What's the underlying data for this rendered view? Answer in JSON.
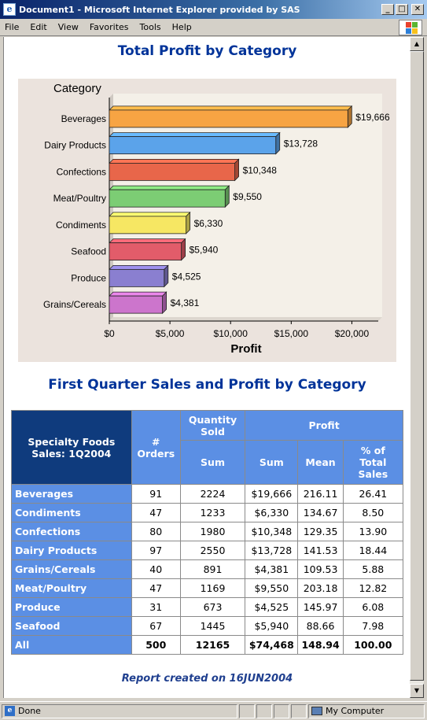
{
  "window": {
    "title": "Document1 - Microsoft Internet Explorer provided by SAS",
    "app_icon": "ie-icon",
    "controls": [
      "minimize",
      "maximize",
      "close"
    ]
  },
  "menu": [
    "File",
    "Edit",
    "View",
    "Favorites",
    "Tools",
    "Help"
  ],
  "report": {
    "title1": "Total Profit by Category",
    "title2": "First Quarter Sales and Profit by Category",
    "footer": "Report created on 16JUN2004"
  },
  "chart_data": {
    "type": "bar",
    "orientation": "horizontal",
    "title": "",
    "ylabel": "Category",
    "xlabel": "Profit",
    "categories": [
      "Beverages",
      "Dairy Products",
      "Confections",
      "Meat/Poultry",
      "Condiments",
      "Seafood",
      "Produce",
      "Grains/Cereals"
    ],
    "values": [
      19666,
      13728,
      10348,
      9550,
      6330,
      5940,
      4525,
      4381
    ],
    "value_labels": [
      "$19,666",
      "$13,728",
      "$10,348",
      "$9,550",
      "$6,330",
      "$5,940",
      "$4,525",
      "$4,381"
    ],
    "colors": [
      "#f7a443",
      "#5ba3ea",
      "#e8664a",
      "#7ccd74",
      "#f6e763",
      "#e25c6a",
      "#8a7fd0",
      "#cc75cc"
    ],
    "xlim": [
      0,
      22500
    ],
    "xticks": [
      0,
      5000,
      10000,
      15000,
      20000
    ],
    "xtick_labels": [
      "$0",
      "$5,000",
      "$10,000",
      "$15,000",
      "$20,000"
    ],
    "grid": false
  },
  "table": {
    "corner_label": "Specialty Foods Sales: 1Q2004",
    "orders_header": "# Orders",
    "qty_header": "Quantity Sold",
    "profit_header": "Profit",
    "sum_label": "Sum",
    "mean_label": "Mean",
    "pct_label": "% of Total Sales",
    "rows": [
      {
        "category": "Beverages",
        "orders": "91",
        "qty": "2224",
        "sum": "$19,666",
        "mean": "216.11",
        "pct": "26.41"
      },
      {
        "category": "Condiments",
        "orders": "47",
        "qty": "1233",
        "sum": "$6,330",
        "mean": "134.67",
        "pct": "8.50"
      },
      {
        "category": "Confections",
        "orders": "80",
        "qty": "1980",
        "sum": "$10,348",
        "mean": "129.35",
        "pct": "13.90"
      },
      {
        "category": "Dairy Products",
        "orders": "97",
        "qty": "2550",
        "sum": "$13,728",
        "mean": "141.53",
        "pct": "18.44"
      },
      {
        "category": "Grains/Cereals",
        "orders": "40",
        "qty": "891",
        "sum": "$4,381",
        "mean": "109.53",
        "pct": "5.88"
      },
      {
        "category": "Meat/Poultry",
        "orders": "47",
        "qty": "1169",
        "sum": "$9,550",
        "mean": "203.18",
        "pct": "12.82"
      },
      {
        "category": "Produce",
        "orders": "31",
        "qty": "673",
        "sum": "$4,525",
        "mean": "145.97",
        "pct": "6.08"
      },
      {
        "category": "Seafood",
        "orders": "67",
        "qty": "1445",
        "sum": "$5,940",
        "mean": "88.66",
        "pct": "7.98"
      }
    ],
    "total": {
      "category": "All",
      "orders": "500",
      "qty": "12165",
      "sum": "$74,468",
      "mean": "148.94",
      "pct": "100.00"
    }
  },
  "status": {
    "text": "Done",
    "zone": "My Computer"
  }
}
